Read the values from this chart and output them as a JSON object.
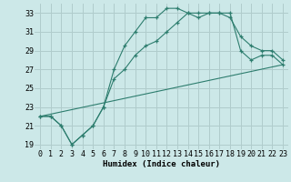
{
  "title": "",
  "xlabel": "Humidex (Indice chaleur)",
  "bg_color": "#cce8e8",
  "grid_color": "#b0cccc",
  "line_color": "#2d7d6e",
  "xlim": [
    -0.5,
    23.5
  ],
  "ylim": [
    18.5,
    34.0
  ],
  "yticks": [
    19,
    21,
    23,
    25,
    27,
    29,
    31,
    33
  ],
  "xticks": [
    0,
    1,
    2,
    3,
    4,
    5,
    6,
    7,
    8,
    9,
    10,
    11,
    12,
    13,
    14,
    15,
    16,
    17,
    18,
    19,
    20,
    21,
    22,
    23
  ],
  "line1_x": [
    0,
    1,
    2,
    3,
    4,
    5,
    6,
    7,
    8,
    9,
    10,
    11,
    12,
    13,
    14,
    15,
    16,
    17,
    18,
    19,
    20,
    21,
    22,
    23
  ],
  "line1_y": [
    22.0,
    22.0,
    21.0,
    19.0,
    20.0,
    21.0,
    23.0,
    27.0,
    29.5,
    31.0,
    32.5,
    32.5,
    33.5,
    33.5,
    33.0,
    32.5,
    33.0,
    33.0,
    32.5,
    30.5,
    29.5,
    29.0,
    29.0,
    28.0
  ],
  "line2_x": [
    0,
    1,
    2,
    3,
    4,
    5,
    6,
    7,
    8,
    9,
    10,
    11,
    12,
    13,
    14,
    15,
    16,
    17,
    18,
    19,
    20,
    21,
    22,
    23
  ],
  "line2_y": [
    22.0,
    22.0,
    21.0,
    19.0,
    20.0,
    21.0,
    23.0,
    26.0,
    27.0,
    28.5,
    29.5,
    30.0,
    31.0,
    32.0,
    33.0,
    33.0,
    33.0,
    33.0,
    33.0,
    29.0,
    28.0,
    28.5,
    28.5,
    27.5
  ],
  "line3_x": [
    0,
    23
  ],
  "line3_y": [
    22.0,
    27.5
  ],
  "font_family": "monospace",
  "tick_fontsize": 6.0,
  "xlabel_fontsize": 6.5
}
